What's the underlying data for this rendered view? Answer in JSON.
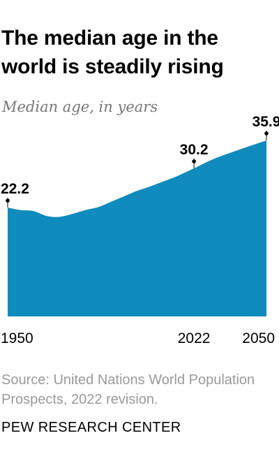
{
  "title": "The median age in the world is steadily rising",
  "subtitle": "Median age, in years",
  "source": "Source: United Nations World Population Prospects, 2022 revision.",
  "org": "PEW RESEARCH CENTER",
  "colors": {
    "area": "#0f8bbd",
    "text": "#000000",
    "muted": "#777777"
  },
  "chart_data": {
    "type": "area",
    "title": "The median age in the world is steadily rising",
    "subtitle": "Median age, in years",
    "xlabel": "",
    "ylabel": "",
    "xlim": [
      1950,
      2050
    ],
    "ylim": [
      0,
      36
    ],
    "grid": false,
    "x": [
      1950,
      1955,
      1960,
      1965,
      1970,
      1975,
      1980,
      1985,
      1990,
      1995,
      2000,
      2005,
      2010,
      2015,
      2022,
      2030,
      2040,
      2050
    ],
    "series": [
      {
        "values": [
          22.2,
          21.7,
          21.5,
          20.5,
          20.3,
          20.9,
          21.7,
          22.3,
          23.4,
          24.5,
          25.6,
          26.5,
          27.5,
          28.5,
          30.2,
          32.2,
          34.1,
          35.9
        ]
      }
    ],
    "labeled_points": [
      {
        "x": 1950,
        "y": 22.2,
        "label": "22.2"
      },
      {
        "x": 2022,
        "y": 30.2,
        "label": "30.2"
      },
      {
        "x": 2050,
        "y": 35.9,
        "label": "35.9"
      }
    ],
    "x_tick_labels": [
      "1950",
      "2022",
      "2050"
    ]
  }
}
